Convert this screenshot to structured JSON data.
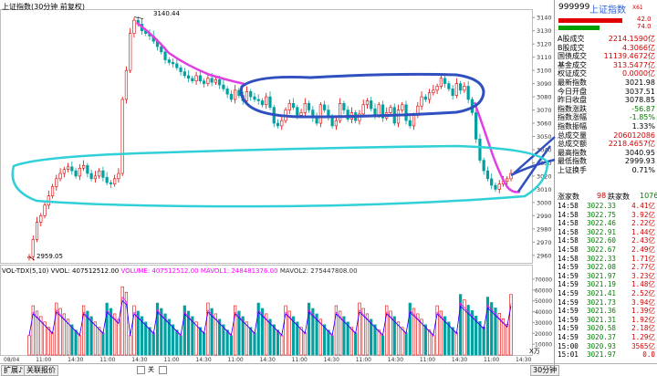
{
  "header": {
    "title": "上证指数(30分钟 前复权)",
    "stock_code": "999999",
    "stock_name": "上证指数",
    "stock_tag": "X61"
  },
  "price_chart": {
    "high_label": "3140.44",
    "low_label": "2959.05",
    "y_ticks": [
      "3140",
      "3130",
      "3120",
      "3110",
      "3100",
      "3090",
      "3080",
      "3070",
      "3060",
      "3050",
      "3040",
      "3030",
      "3020",
      "3010",
      "3000",
      "2990",
      "2980",
      "2970",
      "2960"
    ]
  },
  "volume_chart": {
    "label_main": "VOL-TDX(5,10)",
    "label_vvol": "VVOL: 407512512.00",
    "label_volume": "VOLUME: 407512512.00",
    "label_mavol1": "MAVOL1: 248481376.00",
    "label_mavol2": "MAVOL2: 275447808.00",
    "y_ticks": [
      "70000",
      "60000",
      "50000",
      "40000",
      "30000",
      "20000",
      "10000"
    ],
    "unit": "X万"
  },
  "time_axis": [
    "08/04",
    "11:00",
    "14:30",
    "11:00",
    "14:30",
    "11:00",
    "14:30",
    "11:00",
    "14:30",
    "11:00",
    "14:30",
    "11:00",
    "14:30",
    "11:00",
    "14:30",
    "11:00",
    "14:30"
  ],
  "bottom_tabs": [
    "扩展♪",
    "关联报价",
    "30分钟"
  ],
  "nav_icons": [
    "关"
  ],
  "ratio_bar": {
    "red": "42.0",
    "green": "74.0"
  },
  "quotes": [
    {
      "label": "A股成交",
      "value": "2214.1590亿",
      "color": "#d00000"
    },
    {
      "label": "B股成交",
      "value": "4.3066亿",
      "color": "#d00000"
    },
    {
      "label": "国债成交",
      "value": "11139.4672亿",
      "color": "#d00000"
    },
    {
      "label": "基金成交",
      "value": "313.5477亿",
      "color": "#d00000"
    },
    {
      "label": "权证成交",
      "value": "0.0000亿",
      "color": "#d00000"
    },
    {
      "label": "最新指数",
      "value": "3021.98",
      "color": "#000000"
    },
    {
      "label": "今日开盘",
      "value": "3037.51",
      "color": "#000000"
    },
    {
      "label": "昨日收盘",
      "value": "3078.85",
      "color": "#000000"
    },
    {
      "label": "指数涨跌",
      "value": "-56.87",
      "color": "#008000"
    },
    {
      "label": "指数涨幅",
      "value": "-1.85%",
      "color": "#008000"
    },
    {
      "label": "指数振幅",
      "value": "1.33%",
      "color": "#000000"
    },
    {
      "label": "总成交量",
      "value": "206012086",
      "color": "#d00000"
    },
    {
      "label": "总成交额",
      "value": "2218.4657亿",
      "color": "#d00000"
    },
    {
      "label": "最高指数",
      "value": "3040.95",
      "color": "#000000"
    },
    {
      "label": "最低指数",
      "value": "2999.93",
      "color": "#000000"
    },
    {
      "label": "上证换手",
      "value": "0.71%",
      "color": "#000000"
    }
  ],
  "updown": {
    "up_label": "涨家数",
    "up_value": "98",
    "down_label": "跌家数",
    "down_value": "1076"
  },
  "ticks": [
    {
      "time": "14:58",
      "price": "3022.33",
      "vol": "4.41亿"
    },
    {
      "time": "14:58",
      "price": "3022.75",
      "vol": "3.92亿"
    },
    {
      "time": "14:58",
      "price": "3022.46",
      "vol": "2.22亿"
    },
    {
      "time": "14:58",
      "price": "3022.91",
      "vol": "1.44亿"
    },
    {
      "time": "14:58",
      "price": "3022.60",
      "vol": "2.43亿"
    },
    {
      "time": "14:58",
      "price": "3022.67",
      "vol": "2.49亿"
    },
    {
      "time": "14:58",
      "price": "3022.33",
      "vol": "1.71亿"
    },
    {
      "time": "14:59",
      "price": "3022.08",
      "vol": "2.77亿"
    },
    {
      "time": "14:59",
      "price": "3021.97",
      "vol": "3.23亿"
    },
    {
      "time": "14:59",
      "price": "3021.19",
      "vol": "1.48亿"
    },
    {
      "time": "14:59",
      "price": "3021.41",
      "vol": "2.52亿"
    },
    {
      "time": "14:59",
      "price": "3021.73",
      "vol": "3.94亿"
    },
    {
      "time": "14:59",
      "price": "3021.36",
      "vol": "1.39亿"
    },
    {
      "time": "14:59",
      "price": "3021.31",
      "vol": "1.92亿"
    },
    {
      "time": "14:59",
      "price": "3020.58",
      "vol": "2.18亿"
    },
    {
      "time": "14:59",
      "price": "3020.37",
      "vol": "1.29亿"
    },
    {
      "time": "15:00",
      "price": "3020.93",
      "vol": "3565亿"
    },
    {
      "time": "15:01",
      "price": "3021.97",
      "vol": "0.0"
    }
  ],
  "colors": {
    "up": "#e00000",
    "down": "#00a0a0",
    "ma1": "#ff00ff",
    "ma2": "#0000ff",
    "annot_magenta": "#e040e0",
    "annot_blue": "#3050c0",
    "annot_cyan": "#30d0d8"
  },
  "chart_data": {
    "type": "candlestick",
    "title": "上证指数(30分钟 前复权)",
    "ylim": [
      2955,
      3145
    ],
    "close_series": [
      2959,
      2972,
      2985,
      2990,
      2998,
      3005,
      3012,
      3018,
      3022,
      3025,
      3027,
      3024,
      3020,
      3026,
      3028,
      3022,
      3018,
      3020,
      3024,
      3019,
      3015,
      3014,
      3018,
      3022,
      3078,
      3100,
      3128,
      3138,
      3135,
      3130,
      3128,
      3126,
      3122,
      3118,
      3114,
      3108,
      3106,
      3105,
      3102,
      3099,
      3096,
      3094,
      3092,
      3096,
      3092,
      3090,
      3094,
      3091,
      3093,
      3089,
      3086,
      3082,
      3078,
      3085,
      3081,
      3077,
      3084,
      3080,
      3078,
      3077,
      3074,
      3080,
      3072,
      3060,
      3058,
      3062,
      3070,
      3075,
      3072,
      3066,
      3068,
      3075,
      3070,
      3064,
      3060,
      3074,
      3070,
      3065,
      3058,
      3062,
      3075,
      3070,
      3063,
      3068,
      3062,
      3067,
      3074,
      3077,
      3071,
      3066,
      3074,
      3064,
      3068,
      3072,
      3060,
      3070,
      3074,
      3062,
      3058,
      3066,
      3073,
      3080,
      3078,
      3083,
      3085,
      3088,
      3094,
      3090,
      3086,
      3081,
      3090,
      3085,
      3088,
      3078,
      3068,
      3048,
      3032,
      3024,
      3018,
      3013,
      3010,
      3014,
      3016,
      3018,
      3022
    ],
    "high_point": 3140.44,
    "low_point": 2959.05,
    "volume_ylim": [
      0,
      75000
    ]
  }
}
